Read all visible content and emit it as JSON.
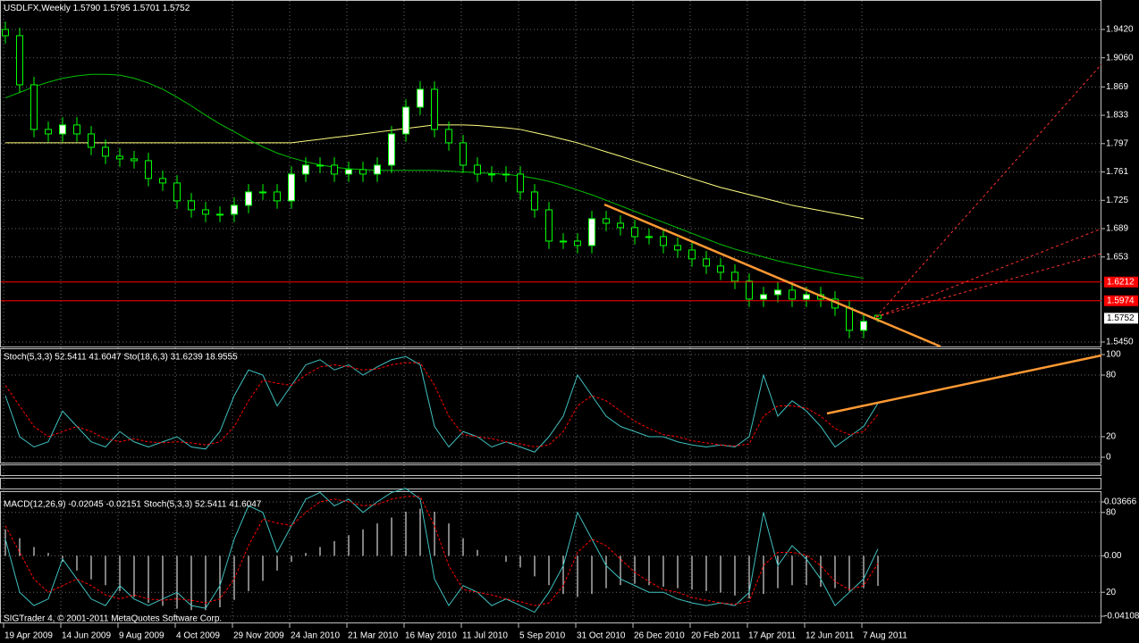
{
  "chart_data": [
    {
      "type": "candlestick",
      "title": "USDLFX,Weekly",
      "ohlc_label": "1.5790 1.5795 1.5701 1.5752",
      "categories": [
        "19 Apr 2009",
        null,
        null,
        null,
        "14 Jun 2009",
        null,
        null,
        null,
        "9 Aug 2009",
        null,
        null,
        null,
        "4 Oct 2009",
        null,
        null,
        null,
        "29 Nov 2009",
        null,
        null,
        null,
        "24 Jan 2010",
        null,
        null,
        null,
        "21 Mar 2010",
        null,
        null,
        null,
        "16 May 2010",
        null,
        null,
        null,
        "11 Jul 2010",
        null,
        null,
        null,
        "5 Sep 2010",
        null,
        null,
        null,
        "31 Oct 2010",
        null,
        null,
        null,
        "26 Dec 2010",
        null,
        null,
        null,
        "20 Feb 2011",
        null,
        null,
        null,
        "17 Apr 2011",
        null,
        null,
        null,
        "12 Jun 2011",
        null,
        null,
        null,
        "7 Aug 2011",
        null
      ],
      "open": [
        1.942,
        1.9341,
        1.8717,
        1.815,
        1.8093,
        1.8207,
        1.8093,
        1.7923,
        1.781,
        1.7776,
        1.7753,
        1.7527,
        1.747,
        1.7243,
        1.7129,
        1.7073,
        1.7073,
        1.7186,
        1.7356,
        1.7356,
        1.7243,
        1.7583,
        1.7696,
        1.7696,
        1.7583,
        1.764,
        1.7583,
        1.7696,
        1.8093,
        1.8433,
        1.866,
        1.815,
        1.798,
        1.7696,
        1.7583,
        1.7583,
        1.7583,
        1.7356,
        1.7129,
        1.6732,
        1.6732,
        1.6676,
        1.7016,
        1.6959,
        1.6903,
        1.6789,
        1.6789,
        1.6676,
        1.6619,
        1.6506,
        1.6415,
        1.6336,
        1.6222,
        1.5995,
        1.6052,
        1.6109,
        1.5995,
        1.6052,
        1.5995,
        1.5882,
        1.5598,
        1.579
      ],
      "high": [
        1.952,
        1.9441,
        1.8817,
        1.825,
        1.8307,
        1.8307,
        1.8193,
        1.8023,
        1.791,
        1.7876,
        1.7853,
        1.7627,
        1.757,
        1.7343,
        1.7229,
        1.7173,
        1.7286,
        1.7456,
        1.7456,
        1.7456,
        1.7683,
        1.7796,
        1.7796,
        1.7796,
        1.774,
        1.774,
        1.7796,
        1.8193,
        1.8533,
        1.876,
        1.876,
        1.825,
        1.808,
        1.7796,
        1.7683,
        1.7683,
        1.7683,
        1.7456,
        1.7229,
        1.6832,
        1.6832,
        1.7116,
        1.7116,
        1.7059,
        1.7003,
        1.6889,
        1.6889,
        1.6776,
        1.6719,
        1.6606,
        1.6515,
        1.6436,
        1.6322,
        1.6152,
        1.6209,
        1.6209,
        1.6152,
        1.6152,
        1.6095,
        1.5982,
        1.5812,
        1.5795
      ],
      "low": [
        1.9241,
        1.8617,
        1.805,
        1.7993,
        1.7993,
        1.7993,
        1.7823,
        1.771,
        1.7676,
        1.7653,
        1.7427,
        1.737,
        1.7143,
        1.7029,
        1.6973,
        1.6973,
        1.6973,
        1.7086,
        1.7256,
        1.7143,
        1.7143,
        1.7483,
        1.7596,
        1.7483,
        1.7483,
        1.7483,
        1.7483,
        1.7596,
        1.7993,
        1.8333,
        1.805,
        1.788,
        1.7596,
        1.7483,
        1.7483,
        1.7483,
        1.7256,
        1.7029,
        1.6632,
        1.6632,
        1.6576,
        1.6576,
        1.6859,
        1.6803,
        1.6689,
        1.6689,
        1.6576,
        1.6519,
        1.6406,
        1.6315,
        1.6236,
        1.6122,
        1.5895,
        1.5895,
        1.5952,
        1.5895,
        1.5895,
        1.5895,
        1.5782,
        1.5498,
        1.5498,
        1.5701
      ],
      "close": [
        1.9341,
        1.8717,
        1.815,
        1.8093,
        1.8207,
        1.8093,
        1.7923,
        1.781,
        1.7776,
        1.7753,
        1.7527,
        1.747,
        1.7243,
        1.7129,
        1.7073,
        1.7073,
        1.7186,
        1.7356,
        1.7356,
        1.7243,
        1.7583,
        1.7696,
        1.7696,
        1.7583,
        1.764,
        1.7583,
        1.7696,
        1.8093,
        1.8433,
        1.866,
        1.815,
        1.798,
        1.7696,
        1.7583,
        1.7583,
        1.7583,
        1.7356,
        1.7129,
        1.6732,
        1.6732,
        1.6676,
        1.7016,
        1.6959,
        1.6903,
        1.6789,
        1.6789,
        1.6676,
        1.6619,
        1.6506,
        1.6415,
        1.6336,
        1.6222,
        1.5995,
        1.6052,
        1.6109,
        1.5995,
        1.6052,
        1.5995,
        1.5882,
        1.5598,
        1.5712,
        1.5752
      ],
      "close_label": "1.5752",
      "up_color": "#ffffff",
      "down_color": "#000000",
      "wick_color": "#00ff00",
      "overlays": [
        {
          "color": "#ffff80",
          "values": [
            1.798,
            1.798,
            1.798,
            1.798,
            1.798,
            1.798,
            1.798,
            1.798,
            1.798,
            1.798,
            1.798,
            1.798,
            1.798,
            1.798,
            1.798,
            1.798,
            1.798,
            1.798,
            1.798,
            1.798,
            1.798,
            1.8003,
            1.8025,
            1.8048,
            1.807,
            1.8093,
            1.8116,
            1.8139,
            1.8162,
            1.8185,
            1.8207,
            1.8207,
            1.8207,
            1.82,
            1.8185,
            1.817,
            1.815,
            1.811,
            1.807,
            1.8025,
            1.798,
            1.7923,
            1.7866,
            1.781,
            1.7753,
            1.7696,
            1.764,
            1.7583,
            1.7526,
            1.747,
            1.7413,
            1.7368,
            1.7323,
            1.7277,
            1.7232,
            1.7186,
            1.7152,
            1.7118,
            1.7084,
            1.705,
            1.7016,
            null
          ]
        },
        {
          "color": "#00c000",
          "values": [
            1.855,
            1.862,
            1.869,
            1.875,
            1.88,
            1.883,
            1.885,
            1.885,
            1.884,
            1.88,
            1.874,
            1.866,
            1.856,
            1.845,
            1.833,
            1.822,
            1.812,
            1.802,
            1.793,
            1.785,
            1.779,
            1.774,
            1.77,
            1.767,
            1.765,
            1.764,
            1.763,
            1.763,
            1.763,
            1.763,
            1.763,
            1.762,
            1.761,
            1.76,
            1.759,
            1.758,
            1.756,
            1.753,
            1.749,
            1.744,
            1.738,
            1.732,
            1.725,
            1.718,
            1.711,
            1.704,
            1.697,
            1.69,
            1.683,
            1.676,
            1.669,
            1.663,
            1.658,
            1.653,
            1.648,
            1.644,
            1.64,
            1.636,
            1.632,
            1.629,
            1.626,
            null
          ]
        }
      ],
      "levels": [
        {
          "value": 1.6212,
          "label": "1.6212",
          "color": "#ff0000"
        },
        {
          "value": 1.5974,
          "label": "1.5974",
          "color": "#ff0000"
        }
      ],
      "ylim": [
        1.5393,
        1.9794
      ],
      "yticks": [
        {
          "value": 1.942,
          "label": "1.9420"
        },
        {
          "value": 1.906,
          "label": "1.9060"
        },
        1.869,
        1.833,
        1.797,
        1.761,
        1.725,
        1.689,
        1.653,
        {
          "value": 1.545,
          "label": "1.5450"
        }
      ],
      "grid": true
    },
    {
      "type": "line",
      "title": "Stoch(5,3,3) 52.5411 41.6047 Sto(18,6,3) 31.6239 18.9555",
      "series": [
        {
          "color": "#40c0c0",
          "values": [
            60,
            20,
            10,
            15,
            45,
            30,
            15,
            10,
            25,
            15,
            10,
            15,
            20,
            10,
            8,
            25,
            60,
            85,
            80,
            50,
            70,
            90,
            95,
            85,
            90,
            80,
            88,
            95,
            98,
            90,
            30,
            10,
            25,
            20,
            10,
            15,
            10,
            5,
            20,
            40,
            80,
            60,
            40,
            30,
            25,
            20,
            20,
            15,
            12,
            10,
            12,
            10,
            20,
            80,
            40,
            55,
            45,
            30,
            10,
            20,
            30,
            52.5411
          ]
        },
        {
          "color": "#ff0000",
          "dashed": true,
          "values": [
            70,
            50,
            30,
            20,
            25,
            30,
            25,
            18,
            15,
            18,
            15,
            14,
            15,
            14,
            12,
            15,
            30,
            55,
            75,
            72,
            70,
            80,
            88,
            90,
            88,
            85,
            86,
            90,
            92,
            92,
            70,
            40,
            22,
            20,
            18,
            15,
            13,
            10,
            12,
            25,
            50,
            60,
            55,
            45,
            35,
            28,
            22,
            20,
            16,
            14,
            12,
            11,
            13,
            40,
            50,
            50,
            48,
            40,
            28,
            22,
            25,
            41.6047
          ]
        }
      ],
      "ylim": [
        0,
        100
      ],
      "yticks": [
        0,
        20,
        80,
        100
      ],
      "grid": true
    },
    {
      "type": "bar",
      "title": "MACD(12,26,9) -0.02045 -0.02151 Stoch(5,3,3) 52.5411 41.6047",
      "values": [
        0.018,
        0.012,
        0.006,
        0.002,
        -0.004,
        -0.01,
        -0.016,
        -0.02,
        -0.024,
        -0.028,
        -0.032,
        -0.034,
        -0.036,
        -0.037,
        -0.037,
        -0.035,
        -0.03,
        -0.024,
        -0.017,
        -0.01,
        -0.004,
        0.002,
        0.006,
        0.01,
        0.014,
        0.018,
        0.022,
        0.026,
        0.03,
        0.032,
        0.03,
        0.022,
        0.012,
        0.004,
        0.0,
        -0.004,
        -0.008,
        -0.014,
        -0.02,
        -0.026,
        -0.028,
        -0.026,
        -0.022,
        -0.02,
        -0.019,
        -0.02,
        -0.021,
        -0.022,
        -0.023,
        -0.024,
        -0.025,
        -0.027,
        -0.029,
        -0.026,
        -0.022,
        -0.02,
        -0.02,
        -0.021,
        -0.022,
        -0.024,
        -0.022,
        -0.02045
      ],
      "color": "#ffffff",
      "ylim": [
        -0.04108,
        0.03666
      ],
      "yticks": [
        0.03666,
        {
          "value": 0,
          "label": "0.00"
        },
        -0.04108
      ],
      "y2lim": [
        0,
        100
      ],
      "y2ticks": [
        20,
        80
      ],
      "grid": true
    }
  ],
  "footer": "SIGTrader 4, © 2001-2011 MetaQuotes Software Corp."
}
